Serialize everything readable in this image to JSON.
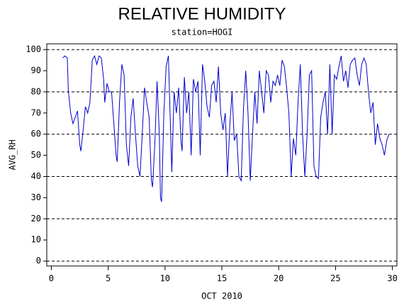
{
  "chart_data": {
    "type": "line",
    "title": "RELATIVE HUMIDITY",
    "subtitle": "station=HOGI",
    "x_label": "OCT 2010",
    "y_label": "AVG_RH",
    "xlim": [
      -0.4,
      30.4
    ],
    "ylim": [
      -2.3,
      102.7
    ],
    "xticks": [
      0,
      5,
      10,
      15,
      20,
      25,
      30
    ],
    "yticks": [
      0,
      10,
      20,
      30,
      40,
      50,
      60,
      70,
      80,
      90,
      100
    ],
    "gridlines": [
      0,
      20,
      40,
      60,
      80,
      100
    ],
    "series": [
      {
        "name": "AVG_RH",
        "color": "#0000cc",
        "x": [
          1.0,
          1.2,
          1.4,
          1.5,
          1.7,
          1.9,
          2.1,
          2.3,
          2.5,
          2.6,
          2.8,
          3.0,
          3.2,
          3.4,
          3.6,
          3.8,
          4.0,
          4.2,
          4.4,
          4.6,
          4.7,
          4.9,
          5.1,
          5.3,
          5.5,
          5.7,
          5.8,
          6.0,
          6.2,
          6.4,
          6.6,
          6.8,
          7.0,
          7.2,
          7.4,
          7.6,
          7.8,
          8.0,
          8.2,
          8.4,
          8.6,
          8.8,
          8.9,
          9.1,
          9.3,
          9.5,
          9.6,
          9.7,
          9.9,
          10.1,
          10.3,
          10.5,
          10.6,
          10.8,
          11.0,
          11.2,
          11.4,
          11.5,
          11.7,
          11.9,
          12.1,
          12.3,
          12.5,
          12.7,
          12.9,
          13.1,
          13.3,
          13.5,
          13.7,
          13.9,
          14.1,
          14.3,
          14.5,
          14.7,
          14.9,
          15.1,
          15.3,
          15.5,
          15.7,
          15.9,
          16.1,
          16.3,
          16.5,
          16.7,
          16.9,
          17.1,
          17.3,
          17.5,
          17.7,
          17.9,
          18.1,
          18.3,
          18.5,
          18.7,
          18.9,
          19.1,
          19.3,
          19.5,
          19.7,
          19.9,
          20.1,
          20.3,
          20.5,
          20.7,
          20.9,
          21.1,
          21.3,
          21.5,
          21.7,
          21.9,
          22.1,
          22.3,
          22.5,
          22.7,
          22.9,
          23.1,
          23.3,
          23.5,
          23.7,
          23.9,
          24.1,
          24.3,
          24.5,
          24.7,
          24.9,
          25.1,
          25.3,
          25.5,
          25.7,
          25.9,
          26.1,
          26.3,
          26.5,
          26.7,
          26.9,
          27.1,
          27.3,
          27.5,
          27.7,
          27.9,
          28.1,
          28.3,
          28.5,
          28.7,
          28.9,
          29.1,
          29.3,
          29.5,
          29.7
        ],
        "values": [
          96,
          97,
          96,
          80,
          70,
          65,
          68,
          71,
          55,
          52,
          62,
          73,
          70,
          75,
          95,
          97,
          93,
          97,
          96,
          86,
          75,
          84,
          80,
          80,
          65,
          50,
          47,
          75,
          93,
          88,
          55,
          45,
          68,
          77,
          60,
          45,
          40,
          60,
          82,
          75,
          68,
          38,
          35,
          55,
          85,
          60,
          30,
          28,
          70,
          92,
          97,
          60,
          42,
          80,
          70,
          82,
          57,
          52,
          87,
          70,
          80,
          50,
          86,
          80,
          85,
          50,
          93,
          85,
          73,
          68,
          83,
          85,
          75,
          92,
          70,
          62,
          70,
          40,
          64,
          80,
          57,
          60,
          40,
          38,
          72,
          90,
          70,
          38,
          60,
          80,
          65,
          90,
          80,
          70,
          90,
          88,
          75,
          85,
          83,
          88,
          83,
          95,
          92,
          82,
          70,
          40,
          58,
          50,
          75,
          93,
          60,
          40,
          60,
          88,
          90,
          45,
          40,
          39,
          68,
          75,
          80,
          60,
          93,
          60,
          88,
          86,
          92,
          97,
          85,
          90,
          82,
          93,
          95,
          96,
          88,
          83,
          93,
          96,
          93,
          80,
          70,
          75,
          55,
          65,
          58,
          55,
          50,
          57,
          60
        ]
      }
    ]
  }
}
